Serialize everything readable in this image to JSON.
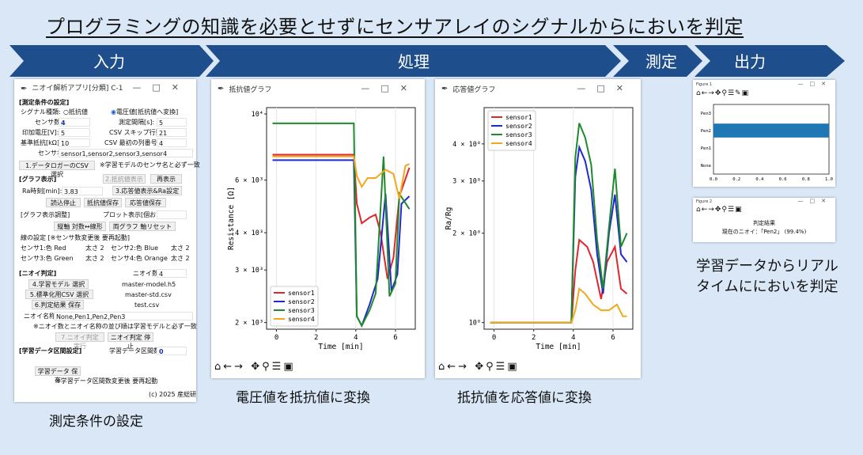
{
  "headline": "プログラミングの知識を必要とせずにセンサアレイのシグナルからにおいを判定",
  "stages": [
    "入力",
    "処理",
    "測定",
    "出力"
  ],
  "colors": {
    "arrow": "#1f4e8c",
    "background": "#d9e7f6",
    "sensor1": "#e0262a",
    "sensor2": "#2029d1",
    "sensor3": "#1f8a2a",
    "sensor4": "#f2a81b",
    "bar": "#1f77b4"
  },
  "gui": {
    "title": "ニオイ解析アプリ[分類] C-1",
    "sec_measure": "[測定条件の設定]",
    "signal_label": "シグナル種類:",
    "radio_resistance": "抵抗値",
    "radio_voltage": "電圧値[抵抗値へ変換]",
    "sensor_count_label": "センサ数:",
    "sensor_count": "4",
    "interval_label": "測定間隔[s]:",
    "interval": "5",
    "voltage_label": "印加電圧[V]:",
    "voltage": "5",
    "skip_label": "CSV スキップ行数:",
    "skip": "21",
    "ref_label": "基準抵抗[kΩ]:",
    "ref": "10",
    "col_label": "CSV 最初の列番号:",
    "col": "4",
    "sensor_names_label": "センサ名:",
    "sensor_names": "sensor1,sensor2,sensor3,sensor4",
    "btn_select_csv": "1.データロガーのCSV 選択",
    "note_sensor": "※学習モデルのセンサ名と必ず一致",
    "sec_graph": "[グラフ表示]",
    "btn_resist_show": "2.抵抗値表示",
    "btn_redraw": "再表示",
    "ra_time_label": "Ra時刻[min]:",
    "ra_time": "3.83",
    "btn_response_show": "3.応答値表示&Ra設定",
    "btn_stop_read": "読込停止",
    "btn_save_resist": "抵抗値保存",
    "btn_save_response": "応答値保存",
    "sec_graph_adjust": "[グラフ表示調整]",
    "plot_label": "プロット表示[個おき]:",
    "btn_vert_axis": "縦軸 対数↔線形",
    "btn_both_axis": "両グラフ 軸リセット",
    "line_setting": "線の設定 [※センサ数変更後 要再起動]",
    "s1_label": "センサ1:色 Red",
    "s1_w": "太さ 2",
    "s2_label": "センサ2:色 Blue",
    "s2_w": "太さ 2",
    "s3_label": "センサ3:色 Green",
    "s3_w": "太さ 2",
    "s4_label": "センサ4:色 Orange",
    "s4_w": "太さ 2",
    "sec_judge": "[ニオイ判定]",
    "odor_count_label": "ニオイ数:",
    "odor_count": "4",
    "btn_select_model": "4.学習モデル 選択",
    "model_file": "master-model.h5",
    "btn_select_std": "5.標準化用CSV 選択",
    "std_file": "master-std.csv",
    "btn_save_result": "6.判定結果 保存",
    "result_file": "test.csv",
    "odor_names_label": "ニオイ名称:",
    "odor_names": "None,Pen1,Pen2,Pen3",
    "note_odor": "※ニオイ数とニオイ名称の並び順は学習モデルと必ず一致",
    "btn_run_judge": "7.ニオイ判定 実行",
    "btn_stop_judge": "ニオイ判定 停止",
    "sec_learn": "[学習データ区間設定]",
    "learn_count_label": "学習データ区間数:",
    "learn_count": "0",
    "btn_save_learn": "学習データ 保存",
    "note_learn": "※学習データ区間数変更後 要再起動",
    "copyright": "(c) 2025 産総研"
  },
  "resistance_window": {
    "title": "抵抗値グラフ"
  },
  "response_window": {
    "title": "応答値グラフ"
  },
  "bar_window": {
    "title": "Figure 1"
  },
  "result_window": {
    "title": "Figure 2",
    "heading": "判定結果",
    "line": "現在のニオイ：「Pen2」 (99.4%)"
  },
  "captions": {
    "input": "測定条件の設定",
    "process1": "電圧値を抵抗値に変換",
    "process2": "抵抗値を応答値に変換",
    "output": "学習データからリアルタイムににおいを判定"
  },
  "chart_data": [
    {
      "type": "line",
      "title": "",
      "xlabel": "Time [min]",
      "ylabel": "Resistance [Ω]",
      "yscale": "log",
      "xticks": [
        "0",
        "2",
        "4",
        "6"
      ],
      "yticks": [
        "2 × 10³",
        "3 × 10³",
        "4 × 10³",
        "6 × 10³",
        "10⁴"
      ],
      "xlim": [
        -0.5,
        7
      ],
      "ylim": [
        1900,
        10500
      ],
      "legend": "lower-left",
      "series": [
        {
          "name": "sensor1",
          "x": [
            -0.2,
            3.9,
            4.05,
            4.3,
            4.7,
            5.0,
            5.25,
            5.6,
            5.9,
            6.2,
            6.7
          ],
          "y": [
            7300,
            7300,
            5000,
            4300,
            4500,
            4600,
            4000,
            2800,
            3300,
            5300,
            6600
          ]
        },
        {
          "name": "sensor2",
          "x": [
            -0.2,
            3.9,
            4.05,
            4.3,
            4.7,
            5.1,
            5.5,
            5.8,
            6.1,
            6.3,
            6.7
          ],
          "y": [
            7000,
            7000,
            2100,
            1950,
            2300,
            2800,
            5400,
            2550,
            2900,
            5000,
            5300
          ]
        },
        {
          "name": "sensor3",
          "x": [
            -0.2,
            3.9,
            4.05,
            4.3,
            4.7,
            5.0,
            5.4,
            5.7,
            6.0,
            6.2,
            6.7
          ],
          "y": [
            9300,
            9300,
            2100,
            1950,
            2200,
            2500,
            7200,
            2450,
            2700,
            5400,
            4800
          ]
        },
        {
          "name": "sensor4",
          "x": [
            -0.2,
            3.9,
            4.05,
            4.3,
            4.6,
            5.0,
            5.5,
            5.9,
            6.2,
            6.5,
            6.7
          ],
          "y": [
            7200,
            7200,
            6200,
            5700,
            6100,
            6100,
            6500,
            6300,
            5200,
            6700,
            6800
          ]
        }
      ]
    },
    {
      "type": "line",
      "title": "",
      "xlabel": "Time [min]",
      "ylabel": "Ra/Rg",
      "yscale": "log",
      "xticks": [
        "0",
        "2",
        "4",
        "6"
      ],
      "yticks": [
        "10⁰",
        "2 × 10⁰",
        "3 × 10⁰",
        "4 × 10⁰"
      ],
      "xlim": [
        -0.5,
        7
      ],
      "ylim": [
        0.95,
        5.3
      ],
      "legend": "upper-left",
      "series": [
        {
          "name": "sensor1",
          "x": [
            -0.2,
            3.9,
            4.1,
            4.3,
            4.7,
            5.0,
            5.4,
            5.7,
            6.1,
            6.4,
            6.7
          ],
          "y": [
            1.0,
            1.0,
            1.5,
            1.9,
            1.8,
            1.6,
            1.2,
            1.6,
            1.8,
            1.3,
            1.25
          ]
        },
        {
          "name": "sensor2",
          "x": [
            -0.2,
            3.9,
            4.1,
            4.3,
            4.6,
            4.9,
            5.2,
            5.5,
            5.8,
            6.1,
            6.4,
            6.7
          ],
          "y": [
            1.0,
            1.0,
            3.1,
            3.9,
            3.5,
            2.8,
            1.7,
            1.25,
            2.0,
            2.7,
            1.7,
            1.6
          ]
        },
        {
          "name": "sensor3",
          "x": [
            -0.2,
            3.9,
            4.1,
            4.3,
            4.6,
            4.9,
            5.2,
            5.5,
            5.8,
            6.1,
            6.4,
            6.7
          ],
          "y": [
            1.0,
            1.0,
            3.6,
            4.7,
            4.2,
            3.4,
            1.9,
            1.3,
            2.1,
            3.3,
            1.8,
            2.0
          ]
        },
        {
          "name": "sensor4",
          "x": [
            -0.2,
            3.9,
            4.1,
            4.3,
            4.6,
            5.0,
            5.4,
            5.8,
            6.2,
            6.5,
            6.7
          ],
          "y": [
            1.0,
            1.0,
            1.1,
            1.3,
            1.25,
            1.15,
            1.1,
            1.1,
            1.15,
            1.05,
            1.05
          ]
        }
      ]
    },
    {
      "type": "bar",
      "orientation": "horizontal",
      "title": "",
      "categories": [
        "Pen3",
        "Pen2",
        "Pen1",
        "None"
      ],
      "values": [
        0.0,
        1.0,
        0.0,
        0.0
      ],
      "xlim": [
        0,
        1
      ],
      "xticks": [
        "0.0",
        "0.2",
        "0.4",
        "0.6",
        "0.8",
        "1.0"
      ]
    }
  ]
}
